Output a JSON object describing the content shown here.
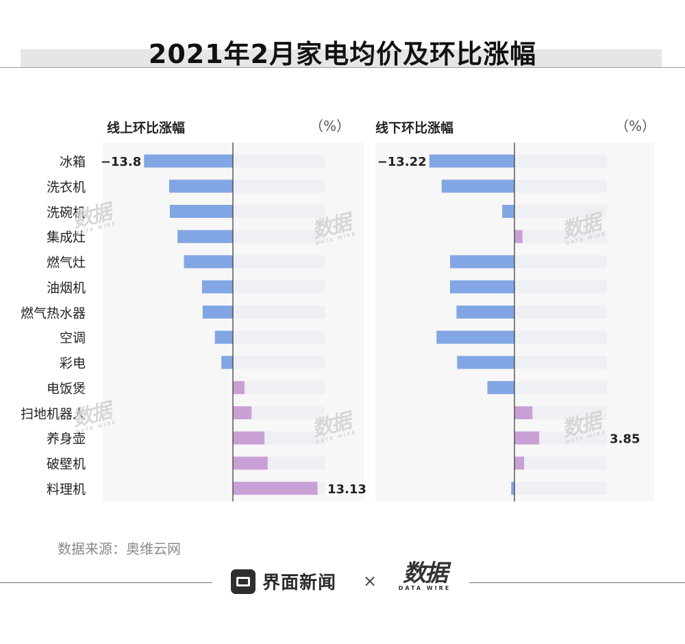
{
  "title": "2021年2月家电均价及环比涨幅",
  "chart_data": [
    {
      "type": "bar",
      "orientation": "horizontal",
      "title": "线上环比涨幅",
      "unit": "（%）",
      "categories": [
        "冰箱",
        "洗衣机",
        "洗碗机",
        "集成灶",
        "燃气灶",
        "油烟机",
        "燃气热水器",
        "空调",
        "彩电",
        "电饭煲",
        "扫地机器人",
        "养身壶",
        "破壁机",
        "料理机"
      ],
      "values": [
        -13.8,
        -9.9,
        -9.8,
        -8.6,
        -7.6,
        -4.8,
        -4.7,
        -2.8,
        -1.8,
        1.8,
        2.9,
        4.9,
        5.4,
        13.13
      ],
      "data_labels": {
        "0": "−13.8",
        "13": "13.13"
      },
      "xlim": [
        -20,
        14.5
      ]
    },
    {
      "type": "bar",
      "orientation": "horizontal",
      "title": "线下环比涨幅",
      "unit": "（%）",
      "categories": [
        "冰箱",
        "洗衣机",
        "洗碗机",
        "集成灶",
        "燃气灶",
        "油烟机",
        "燃气热水器",
        "空调",
        "彩电",
        "电饭煲",
        "扫地机器人",
        "养身壶",
        "破壁机",
        "料理机"
      ],
      "values": [
        -13.22,
        -11.3,
        -1.9,
        1.25,
        -10.0,
        -10.0,
        -9.0,
        -12.1,
        -8.9,
        -4.2,
        2.8,
        3.85,
        1.5,
        -0.5
      ],
      "data_labels": {
        "0": "−13.22",
        "11": "3.85"
      },
      "xlim": [
        -20,
        14.5
      ]
    }
  ],
  "colors": {
    "negative": "#82a6e4",
    "positive": "#c9a0d5",
    "track": "#eef0f4",
    "panel_bg": "#f7f7f7",
    "axis": "#333333"
  },
  "source": "数据来源：奥维云网",
  "footer": {
    "brand": "界面新闻",
    "times": "×",
    "partner": "数据",
    "partner_sub": "DATA WIRE"
  },
  "watermark": {
    "text": "数据",
    "sub": "DATA WIRE"
  }
}
